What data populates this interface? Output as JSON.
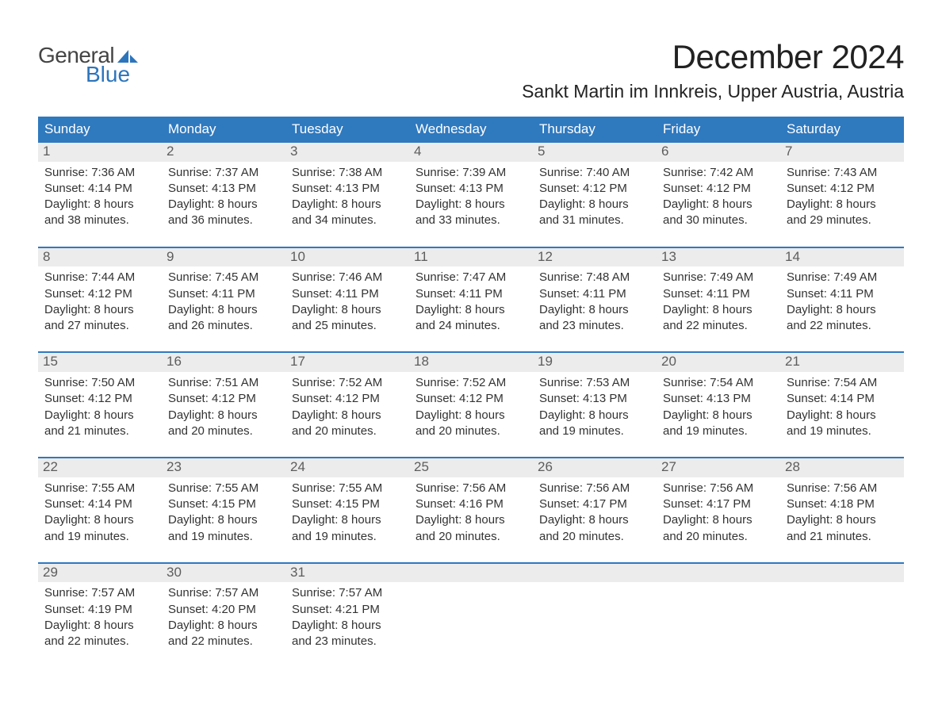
{
  "logo": {
    "word1": "General",
    "word2": "Blue"
  },
  "title": "December 2024",
  "location": "Sankt Martin im Innkreis, Upper Austria, Austria",
  "colors": {
    "header_blue": "#2f79bf",
    "daynum_bg": "#ececec",
    "daynum_color": "#5d5d5d",
    "body_text": "#333333",
    "logo_gray": "#444444",
    "logo_blue": "#2c75bc",
    "background": "#ffffff"
  },
  "typography": {
    "month_title_fontsize": 42,
    "location_fontsize": 23,
    "weekday_fontsize": 17,
    "daynum_fontsize": 17,
    "body_fontsize": 15,
    "font_family": "Arial"
  },
  "weekdays": [
    "Sunday",
    "Monday",
    "Tuesday",
    "Wednesday",
    "Thursday",
    "Friday",
    "Saturday"
  ],
  "labels": {
    "sunrise": "Sunrise:",
    "sunset": "Sunset:",
    "daylight": "Daylight:"
  },
  "weeks": [
    [
      {
        "day": "1",
        "sunrise": "7:36 AM",
        "sunset": "4:14 PM",
        "daylight": "8 hours and 38 minutes."
      },
      {
        "day": "2",
        "sunrise": "7:37 AM",
        "sunset": "4:13 PM",
        "daylight": "8 hours and 36 minutes."
      },
      {
        "day": "3",
        "sunrise": "7:38 AM",
        "sunset": "4:13 PM",
        "daylight": "8 hours and 34 minutes."
      },
      {
        "day": "4",
        "sunrise": "7:39 AM",
        "sunset": "4:13 PM",
        "daylight": "8 hours and 33 minutes."
      },
      {
        "day": "5",
        "sunrise": "7:40 AM",
        "sunset": "4:12 PM",
        "daylight": "8 hours and 31 minutes."
      },
      {
        "day": "6",
        "sunrise": "7:42 AM",
        "sunset": "4:12 PM",
        "daylight": "8 hours and 30 minutes."
      },
      {
        "day": "7",
        "sunrise": "7:43 AM",
        "sunset": "4:12 PM",
        "daylight": "8 hours and 29 minutes."
      }
    ],
    [
      {
        "day": "8",
        "sunrise": "7:44 AM",
        "sunset": "4:12 PM",
        "daylight": "8 hours and 27 minutes."
      },
      {
        "day": "9",
        "sunrise": "7:45 AM",
        "sunset": "4:11 PM",
        "daylight": "8 hours and 26 minutes."
      },
      {
        "day": "10",
        "sunrise": "7:46 AM",
        "sunset": "4:11 PM",
        "daylight": "8 hours and 25 minutes."
      },
      {
        "day": "11",
        "sunrise": "7:47 AM",
        "sunset": "4:11 PM",
        "daylight": "8 hours and 24 minutes."
      },
      {
        "day": "12",
        "sunrise": "7:48 AM",
        "sunset": "4:11 PM",
        "daylight": "8 hours and 23 minutes."
      },
      {
        "day": "13",
        "sunrise": "7:49 AM",
        "sunset": "4:11 PM",
        "daylight": "8 hours and 22 minutes."
      },
      {
        "day": "14",
        "sunrise": "7:49 AM",
        "sunset": "4:11 PM",
        "daylight": "8 hours and 22 minutes."
      }
    ],
    [
      {
        "day": "15",
        "sunrise": "7:50 AM",
        "sunset": "4:12 PM",
        "daylight": "8 hours and 21 minutes."
      },
      {
        "day": "16",
        "sunrise": "7:51 AM",
        "sunset": "4:12 PM",
        "daylight": "8 hours and 20 minutes."
      },
      {
        "day": "17",
        "sunrise": "7:52 AM",
        "sunset": "4:12 PM",
        "daylight": "8 hours and 20 minutes."
      },
      {
        "day": "18",
        "sunrise": "7:52 AM",
        "sunset": "4:12 PM",
        "daylight": "8 hours and 20 minutes."
      },
      {
        "day": "19",
        "sunrise": "7:53 AM",
        "sunset": "4:13 PM",
        "daylight": "8 hours and 19 minutes."
      },
      {
        "day": "20",
        "sunrise": "7:54 AM",
        "sunset": "4:13 PM",
        "daylight": "8 hours and 19 minutes."
      },
      {
        "day": "21",
        "sunrise": "7:54 AM",
        "sunset": "4:14 PM",
        "daylight": "8 hours and 19 minutes."
      }
    ],
    [
      {
        "day": "22",
        "sunrise": "7:55 AM",
        "sunset": "4:14 PM",
        "daylight": "8 hours and 19 minutes."
      },
      {
        "day": "23",
        "sunrise": "7:55 AM",
        "sunset": "4:15 PM",
        "daylight": "8 hours and 19 minutes."
      },
      {
        "day": "24",
        "sunrise": "7:55 AM",
        "sunset": "4:15 PM",
        "daylight": "8 hours and 19 minutes."
      },
      {
        "day": "25",
        "sunrise": "7:56 AM",
        "sunset": "4:16 PM",
        "daylight": "8 hours and 20 minutes."
      },
      {
        "day": "26",
        "sunrise": "7:56 AM",
        "sunset": "4:17 PM",
        "daylight": "8 hours and 20 minutes."
      },
      {
        "day": "27",
        "sunrise": "7:56 AM",
        "sunset": "4:17 PM",
        "daylight": "8 hours and 20 minutes."
      },
      {
        "day": "28",
        "sunrise": "7:56 AM",
        "sunset": "4:18 PM",
        "daylight": "8 hours and 21 minutes."
      }
    ],
    [
      {
        "day": "29",
        "sunrise": "7:57 AM",
        "sunset": "4:19 PM",
        "daylight": "8 hours and 22 minutes."
      },
      {
        "day": "30",
        "sunrise": "7:57 AM",
        "sunset": "4:20 PM",
        "daylight": "8 hours and 22 minutes."
      },
      {
        "day": "31",
        "sunrise": "7:57 AM",
        "sunset": "4:21 PM",
        "daylight": "8 hours and 23 minutes."
      },
      {
        "empty": true
      },
      {
        "empty": true
      },
      {
        "empty": true
      },
      {
        "empty": true
      }
    ]
  ]
}
